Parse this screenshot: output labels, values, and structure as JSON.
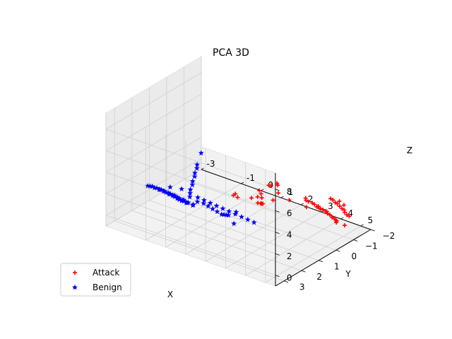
{
  "chart_data": {
    "type": "scatter",
    "projection": "3d",
    "title": "PCA 3D",
    "xlabel": "X",
    "ylabel": "Y",
    "zlabel": "Z",
    "xlim": [
      -3,
      5.5
    ],
    "ylim": [
      -2,
      3.5
    ],
    "zlim": [
      -1,
      9.5
    ],
    "xticks": [
      "-3",
      "-1",
      "0",
      "1",
      "2",
      "3",
      "4",
      "5"
    ],
    "yticks": [
      "−2",
      "−1",
      "0",
      "1",
      "2",
      "3"
    ],
    "zticks": [
      "0",
      "2",
      "4",
      "6",
      "8"
    ],
    "grid": true,
    "legend_position": "lower-left",
    "series": [
      {
        "name": "Attack",
        "marker": "plus",
        "color": "#ff0000",
        "points": [
          [
            1.0,
            -0.3,
            0.6
          ],
          [
            1.3,
            -0.3,
            0.9
          ],
          [
            1.4,
            -0.2,
            0.5
          ],
          [
            1.5,
            -0.3,
            0.4
          ],
          [
            1.3,
            -0.5,
            1.0
          ],
          [
            1.6,
            -0.2,
            1.1
          ],
          [
            1.8,
            0.1,
            1.0
          ],
          [
            1.9,
            -0.5,
            0.8
          ],
          [
            2.0,
            0.2,
            1.2
          ],
          [
            1.3,
            -0.4,
            1.4
          ],
          [
            1.6,
            -0.6,
            1.9
          ],
          [
            1.8,
            -0.5,
            2.1
          ],
          [
            2.1,
            -0.5,
            2.5
          ],
          [
            2.4,
            -0.2,
            2.8
          ],
          [
            2.6,
            0.0,
            2.4
          ],
          [
            0.0,
            -0.4,
            0.1
          ],
          [
            0.3,
            -0.3,
            0.2
          ],
          [
            0.1,
            -0.4,
            0.3
          ],
          [
            2.6,
            -1.6,
            0.2
          ],
          [
            2.8,
            -1.5,
            0.3
          ],
          [
            3.0,
            -1.5,
            0.3
          ],
          [
            3.2,
            -1.4,
            0.4
          ],
          [
            3.4,
            -1.3,
            0.4
          ],
          [
            3.6,
            -1.2,
            0.5
          ],
          [
            3.8,
            -1.2,
            0.5
          ],
          [
            4.0,
            -1.1,
            0.6
          ],
          [
            4.2,
            -1.0,
            0.6
          ],
          [
            4.4,
            -0.9,
            0.7
          ],
          [
            4.6,
            -0.8,
            0.7
          ],
          [
            4.8,
            -0.7,
            0.8
          ],
          [
            5.0,
            -0.6,
            0.8
          ],
          [
            4.9,
            -0.7,
            0.5
          ],
          [
            4.7,
            -0.9,
            0.4
          ],
          [
            3.9,
            -1.3,
            0.3
          ],
          [
            3.5,
            -1.4,
            0.2
          ],
          [
            3.3,
            -1.5,
            0.2
          ],
          [
            4.8,
            -1.3,
            -0.4
          ],
          [
            3.4,
            -2.1,
            0.4
          ],
          [
            3.6,
            -2.0,
            0.5
          ],
          [
            3.8,
            -1.9,
            0.5
          ],
          [
            4.0,
            -1.8,
            0.6
          ],
          [
            4.2,
            -1.7,
            0.6
          ],
          [
            4.4,
            -1.6,
            0.6
          ],
          [
            4.6,
            -1.5,
            0.7
          ],
          [
            4.8,
            -1.3,
            0.8
          ],
          [
            5.0,
            -1.2,
            0.8
          ],
          [
            5.2,
            -1.1,
            0.9
          ],
          [
            4.5,
            -1.6,
            1.0
          ],
          [
            4.1,
            -1.8,
            0.9
          ],
          [
            3.1,
            -1.0,
            1.3
          ],
          [
            3.5,
            -0.6,
            1.1
          ],
          [
            2.8,
            -0.4,
            1.5
          ]
        ]
      },
      {
        "name": "Benign",
        "marker": "star",
        "color": "#0000ff",
        "points": [
          [
            -2.9,
            1.2,
            0.6
          ],
          [
            -2.7,
            1.3,
            0.8
          ],
          [
            -2.5,
            1.4,
            1.0
          ],
          [
            -2.3,
            1.5,
            1.1
          ],
          [
            -2.1,
            1.6,
            1.3
          ],
          [
            -1.9,
            1.7,
            1.4
          ],
          [
            -1.7,
            1.8,
            1.6
          ],
          [
            -1.5,
            1.9,
            1.7
          ],
          [
            -1.3,
            2.0,
            1.8
          ],
          [
            -1.1,
            2.1,
            2.0
          ],
          [
            -0.9,
            2.2,
            2.1
          ],
          [
            -0.7,
            2.3,
            2.2
          ],
          [
            -0.5,
            2.4,
            2.3
          ],
          [
            -0.3,
            2.5,
            2.4
          ],
          [
            -0.1,
            2.6,
            2.5
          ],
          [
            0.1,
            2.7,
            2.6
          ],
          [
            0.3,
            2.8,
            2.8
          ],
          [
            0.5,
            2.9,
            2.9
          ],
          [
            -2.2,
            1.3,
            0.8
          ],
          [
            -1.8,
            1.5,
            1.1
          ],
          [
            -1.4,
            1.7,
            1.3
          ],
          [
            -1.0,
            1.9,
            1.6
          ],
          [
            -0.6,
            2.1,
            1.8
          ],
          [
            -0.2,
            2.3,
            2.1
          ],
          [
            0.2,
            2.5,
            2.3
          ],
          [
            0.6,
            2.6,
            2.5
          ],
          [
            -1.6,
            1.4,
            0.9
          ],
          [
            -1.2,
            1.6,
            1.2
          ],
          [
            -0.8,
            1.8,
            1.4
          ],
          [
            -0.4,
            2.0,
            1.7
          ],
          [
            0.0,
            2.2,
            1.9
          ],
          [
            0.4,
            2.4,
            2.1
          ],
          [
            0.6,
            2.8,
            3.4
          ],
          [
            0.7,
            2.9,
            3.9
          ],
          [
            0.8,
            3.0,
            4.4
          ],
          [
            0.9,
            3.0,
            4.9
          ],
          [
            1.0,
            3.1,
            5.4
          ],
          [
            1.1,
            3.1,
            5.9
          ],
          [
            1.2,
            3.2,
            6.4
          ],
          [
            1.3,
            3.2,
            6.9
          ],
          [
            1.4,
            3.3,
            7.4
          ],
          [
            1.6,
            3.3,
            8.6
          ],
          [
            -0.5,
            1.1,
            0.6
          ],
          [
            -0.1,
            1.2,
            0.8
          ],
          [
            0.3,
            1.4,
            1.0
          ],
          [
            0.7,
            1.6,
            1.2
          ],
          [
            1.1,
            1.8,
            1.4
          ],
          [
            1.5,
            2.0,
            1.6
          ],
          [
            1.7,
            2.1,
            1.8
          ],
          [
            1.9,
            2.2,
            2.0
          ],
          [
            2.1,
            2.3,
            2.2
          ],
          [
            -1.0,
            0.5,
            0.1
          ],
          [
            -0.6,
            0.6,
            0.2
          ],
          [
            -0.2,
            0.7,
            0.3
          ],
          [
            0.2,
            0.8,
            0.4
          ],
          [
            0.6,
            0.9,
            0.5
          ],
          [
            1.0,
            1.0,
            0.6
          ],
          [
            1.4,
            1.1,
            0.7
          ],
          [
            1.8,
            1.2,
            0.8
          ],
          [
            2.2,
            1.3,
            0.9
          ],
          [
            2.6,
            1.4,
            1.0
          ],
          [
            -1.9,
            0.4,
            0.2
          ],
          [
            -2.3,
            0.6,
            0.3
          ],
          [
            -1.4,
            1.2,
            0.5
          ],
          [
            2.4,
            2.2,
            2.6
          ],
          [
            2.2,
            2.1,
            1.3
          ]
        ]
      }
    ]
  }
}
